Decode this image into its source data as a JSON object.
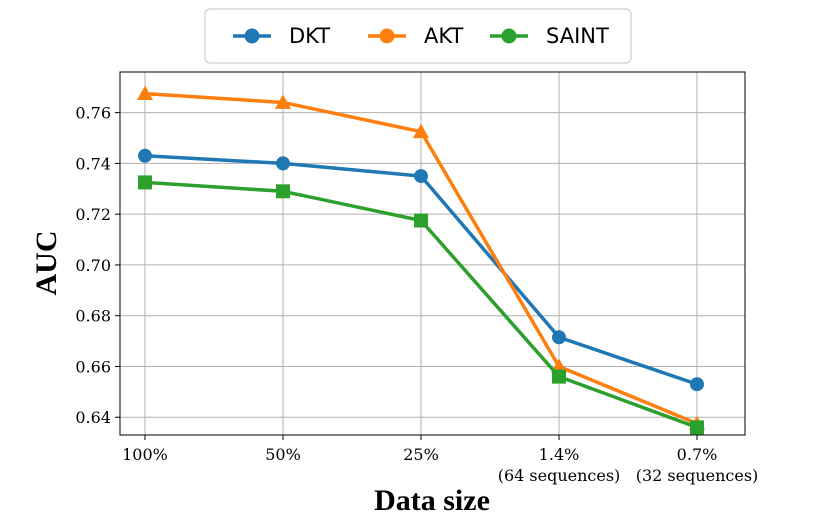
{
  "chart_data": {
    "type": "line",
    "categories": [
      "100%",
      "50%",
      "25%",
      "1.4%",
      "0.7%"
    ],
    "category_sublabels": [
      "",
      "",
      "",
      "(64 sequences)",
      "(32 sequences)"
    ],
    "series": [
      {
        "name": "DKT",
        "color": "#1f77b4",
        "marker": "circle",
        "values": [
          0.743,
          0.74,
          0.735,
          0.6715,
          0.653
        ]
      },
      {
        "name": "AKT",
        "color": "#ff7f0e",
        "marker": "triangle",
        "values": [
          0.7675,
          0.764,
          0.7525,
          0.66,
          0.6375
        ]
      },
      {
        "name": "SAINT",
        "color": "#2ca02c",
        "marker": "square",
        "values": [
          0.7325,
          0.729,
          0.7175,
          0.656,
          0.636
        ]
      }
    ],
    "xlabel": "Data size",
    "ylabel": "AUC",
    "ylim": [
      0.633,
      0.776
    ],
    "yticks": [
      "0.64",
      "0.66",
      "0.68",
      "0.70",
      "0.72",
      "0.74",
      "0.76"
    ],
    "grid": true,
    "legend_position": "top-center"
  }
}
